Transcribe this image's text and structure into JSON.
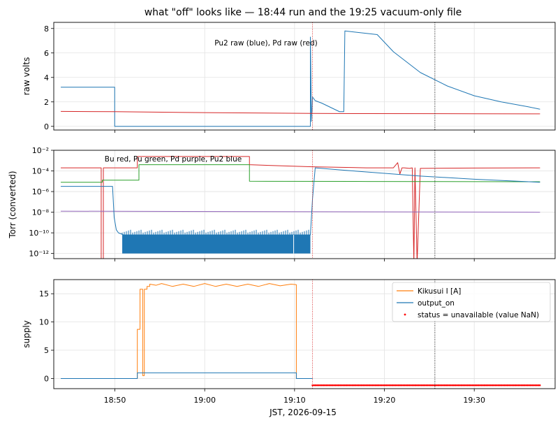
{
  "figure": {
    "title": "what \"off\" looks like — 18:44 run and the 19:25 vacuum-only file",
    "xlabel": "JST, 2026-09-15",
    "x_ticks": [
      "18:50",
      "19:00",
      "19:10",
      "19:20",
      "19:30"
    ]
  },
  "chart_data": [
    {
      "type": "line",
      "ylabel": "raw volts",
      "annotation": "Pu2 raw (blue), Pd raw (red)",
      "xlim": [
        18.72,
        19.65
      ],
      "ylim": [
        -0.3,
        8.5
      ],
      "y_ticks": [
        "0",
        "2",
        "4",
        "6",
        "8"
      ],
      "grid": true,
      "vlines": [
        {
          "x": 19.2,
          "style": "dotted",
          "color": "#d62728"
        },
        {
          "x": 19.427,
          "style": "dotted",
          "color": "#000000"
        }
      ],
      "series": [
        {
          "name": "Pu2 raw",
          "color": "#1f77b4",
          "x": [
            18.733,
            18.833,
            18.833,
            19.196,
            19.196,
            19.198,
            19.2,
            19.205,
            19.217,
            19.25,
            19.258,
            19.26,
            19.3,
            19.32,
            19.35,
            19.4,
            19.45,
            19.5,
            19.55,
            19.6,
            19.622
          ],
          "y": [
            3.2,
            3.2,
            0,
            0,
            7.3,
            0.4,
            2.4,
            2.1,
            1.9,
            1.2,
            1.2,
            7.8,
            7.6,
            7.5,
            6.1,
            4.4,
            3.3,
            2.5,
            2.0,
            1.6,
            1.4
          ]
        },
        {
          "name": "Pd raw",
          "color": "#d62728",
          "x": [
            18.733,
            18.833,
            19.0,
            19.2,
            19.3,
            19.5,
            19.622
          ],
          "y": [
            1.22,
            1.2,
            1.12,
            1.06,
            1.04,
            1.03,
            1.02
          ]
        }
      ]
    },
    {
      "type": "line",
      "ylabel": "Torr (converted)",
      "annotation": "Bu red, Pu green, Pd purple, Pu2 blue",
      "yscale": "log",
      "xlim": [
        18.72,
        19.65
      ],
      "ylim": [
        -12.5,
        -2
      ],
      "y_ticks": [
        "10⁻²",
        "10⁻⁴",
        "10⁻⁶",
        "10⁻⁸",
        "10⁻¹⁰",
        "10⁻¹²"
      ],
      "grid": true,
      "vlines": [
        {
          "x": 19.2,
          "style": "dotted",
          "color": "#d62728"
        },
        {
          "x": 19.427,
          "style": "dotted",
          "color": "#000000"
        }
      ],
      "series": [
        {
          "name": "Bu",
          "color": "#d62728",
          "x": [
            18.733,
            18.808,
            18.808,
            18.812,
            18.812,
            18.875,
            18.875,
            19.083,
            19.083,
            19.2,
            19.3,
            19.35,
            19.358,
            19.362,
            19.366,
            19.37,
            19.38,
            19.385,
            19.388,
            19.39,
            19.394,
            19.4,
            19.5,
            19.622
          ],
          "y": [
            -3.7,
            -3.7,
            -13,
            -13,
            -3.7,
            -3.7,
            -2.6,
            -2.6,
            -3.4,
            -3.6,
            -3.7,
            -3.7,
            -3.2,
            -4.3,
            -3.7,
            -3.7,
            -3.75,
            -3.7,
            -12.9,
            -3.7,
            -12.9,
            -3.75,
            -3.72,
            -3.7
          ]
        },
        {
          "name": "Pu",
          "color": "#2ca02c",
          "x": [
            18.733,
            18.81,
            18.81,
            18.878,
            18.878,
            19.083,
            19.083,
            19.3,
            19.622
          ],
          "y": [
            -5.1,
            -5.1,
            -4.9,
            -4.9,
            -3.4,
            -3.4,
            -5.0,
            -5.02,
            -5.05
          ]
        },
        {
          "name": "Pd",
          "color": "#9467bd",
          "x": [
            18.733,
            19.622
          ],
          "y": [
            -7.9,
            -8.0
          ]
        },
        {
          "name": "Pu2",
          "color": "#1f77b4",
          "x": [
            18.733,
            18.829,
            18.832,
            18.836,
            18.84,
            18.85,
            19.0,
            19.196,
            19.2,
            19.205,
            19.25,
            19.3,
            19.4,
            19.5,
            19.622
          ],
          "y": [
            -5.5,
            -5.5,
            -8.5,
            -9.7,
            -10.0,
            -10.2,
            -10.2,
            -10.2,
            -6.7,
            -3.7,
            -3.9,
            -4.1,
            -4.5,
            -4.8,
            -5.1
          ]
        },
        {
          "name": "Pu2 noise band",
          "color": "#1f77b4",
          "band": true,
          "x0": 18.847,
          "x1": 19.196,
          "ylow": -12.0,
          "yhigh": -10.2
        }
      ]
    },
    {
      "type": "line",
      "ylabel": "supply",
      "xlim": [
        18.72,
        19.65
      ],
      "ylim": [
        -1.8,
        17.5
      ],
      "y_ticks": [
        "0",
        "5",
        "10",
        "15"
      ],
      "grid": true,
      "legend": "upper right",
      "vlines": [
        {
          "x": 19.2,
          "style": "dotted",
          "color": "#d62728"
        },
        {
          "x": 19.427,
          "style": "dotted",
          "color": "#000000"
        }
      ],
      "series": [
        {
          "name": "Kikusui I [A]",
          "color": "#ff7f0e",
          "x": [
            18.733,
            18.875,
            18.875,
            18.88,
            18.88,
            18.885,
            18.885,
            18.888,
            18.888,
            18.893,
            18.893,
            18.898,
            18.898,
            18.91,
            18.92,
            18.94,
            18.96,
            18.98,
            19.0,
            19.02,
            19.04,
            19.06,
            19.08,
            19.1,
            19.12,
            19.14,
            19.16,
            19.17,
            19.17,
            19.2
          ],
          "y": [
            0,
            0,
            8.7,
            8.7,
            15.8,
            15.8,
            0.5,
            0.5,
            15.8,
            15.8,
            16.3,
            16.3,
            16.7,
            16.5,
            16.8,
            16.3,
            16.7,
            16.3,
            16.8,
            16.3,
            16.7,
            16.3,
            16.7,
            16.3,
            16.8,
            16.4,
            16.7,
            16.6,
            0,
            0
          ]
        },
        {
          "name": "output_on",
          "color": "#1f77b4",
          "x": [
            18.733,
            18.875,
            18.875,
            19.17,
            19.17,
            19.2
          ],
          "y": [
            0,
            0,
            1,
            1,
            0,
            0
          ]
        },
        {
          "name": "status = unavailable (value NaN)",
          "color": "#ff0000",
          "markers": true,
          "x0": 19.2,
          "x1": 19.622,
          "y": -1.2
        }
      ]
    }
  ]
}
